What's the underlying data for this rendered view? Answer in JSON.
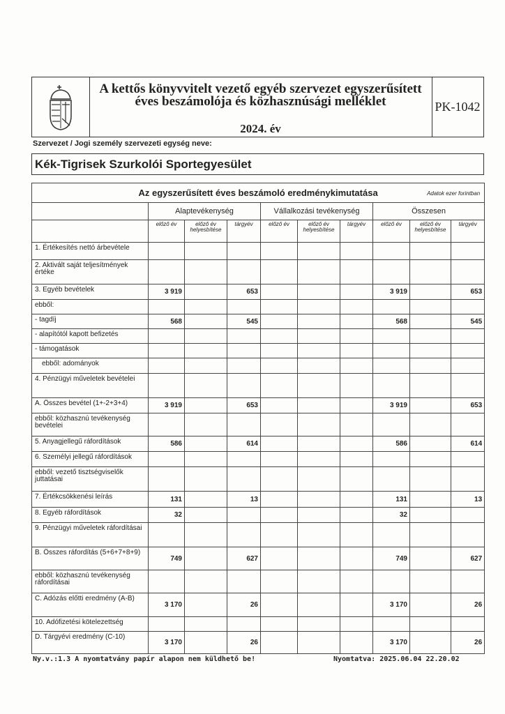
{
  "header": {
    "title_line1": "A kettős könyvvitelt vezető egyéb szervezet egyszerűsített",
    "title_line2": "éves beszámolója és közhasznúsági melléklet",
    "year": "2024. év",
    "form_code": "PK-1042",
    "logo_icon": "hungarian-coat-of-arms-icon"
  },
  "organization": {
    "label": "Szervezet / Jogi személy szervezeti egység neve:",
    "name": "Kék-Tigrisek Szurkolói Sportegyesület"
  },
  "table": {
    "title": "Az egyszerűsített éves beszámoló eredménykimutatása",
    "unit": "Adatok ezer forintban",
    "groups": [
      "Alaptevékenység",
      "Vállalkozási tevékenység",
      "Összesen"
    ],
    "subcolumns": [
      "előző év",
      "előző év helyesbítése",
      "tárgyév"
    ],
    "rows": [
      {
        "label": "1. Értékesítés nettó árbevétele",
        "values": [
          "",
          "",
          "",
          "",
          "",
          "",
          "",
          "",
          ""
        ]
      },
      {
        "label": "2. Aktivált saját teljesítmények értéke",
        "values": [
          "",
          "",
          "",
          "",
          "",
          "",
          "",
          "",
          ""
        ]
      },
      {
        "label": "3. Egyéb bevételek",
        "values": [
          "3 919",
          "",
          "653",
          "",
          "",
          "",
          "3 919",
          "",
          "653"
        ]
      },
      {
        "label": "ebből:",
        "values": [
          "",
          "",
          "",
          "",
          "",
          "",
          "",
          "",
          ""
        ]
      },
      {
        "label": "- tagdíj",
        "values": [
          "568",
          "",
          "545",
          "",
          "",
          "",
          "568",
          "",
          "545"
        ]
      },
      {
        "label": "- alapítótól kapott befizetés",
        "values": [
          "",
          "",
          "",
          "",
          "",
          "",
          "",
          "",
          ""
        ]
      },
      {
        "label": "- támogatások",
        "values": [
          "",
          "",
          "",
          "",
          "",
          "",
          "",
          "",
          ""
        ]
      },
      {
        "label": "ebből: adományok",
        "values": [
          "",
          "",
          "",
          "",
          "",
          "",
          "",
          "",
          ""
        ]
      },
      {
        "label": "4. Pénzügyi műveletek bevételei",
        "values": [
          "",
          "",
          "",
          "",
          "",
          "",
          "",
          "",
          ""
        ]
      },
      {
        "label": "A. Összes bevétel (1+-2+3+4)",
        "values": [
          "3 919",
          "",
          "653",
          "",
          "",
          "",
          "3 919",
          "",
          "653"
        ]
      },
      {
        "label": "ebből: közhasznú tevékenység bevételei",
        "values": [
          "",
          "",
          "",
          "",
          "",
          "",
          "",
          "",
          ""
        ]
      },
      {
        "label": "5. Anyagjellegű ráfordítások",
        "values": [
          "586",
          "",
          "614",
          "",
          "",
          "",
          "586",
          "",
          "614"
        ]
      },
      {
        "label": "6. Személyi jellegű ráfordítások",
        "values": [
          "",
          "",
          "",
          "",
          "",
          "",
          "",
          "",
          ""
        ]
      },
      {
        "label": "ebből: vezető tisztségviselők juttatásai",
        "values": [
          "",
          "",
          "",
          "",
          "",
          "",
          "",
          "",
          ""
        ]
      },
      {
        "label": "7. Értékcsökkenési leírás",
        "values": [
          "131",
          "",
          "13",
          "",
          "",
          "",
          "131",
          "",
          "13"
        ]
      },
      {
        "label": "8. Egyéb ráfordítások",
        "values": [
          "32",
          "",
          "",
          "",
          "",
          "",
          "32",
          "",
          ""
        ]
      },
      {
        "label": "9. Pénzügyi műveletek ráfordításai",
        "values": [
          "",
          "",
          "",
          "",
          "",
          "",
          "",
          "",
          ""
        ]
      },
      {
        "label": "B. Összes ráfordítás (5+6+7+8+9)",
        "values": [
          "749",
          "",
          "627",
          "",
          "",
          "",
          "749",
          "",
          "627"
        ]
      },
      {
        "label": "ebből: közhasznú tevékenység ráfordításai",
        "values": [
          "",
          "",
          "",
          "",
          "",
          "",
          "",
          "",
          ""
        ]
      },
      {
        "label": "C. Adózás előtti eredmény (A-B)",
        "values": [
          "3 170",
          "",
          "26",
          "",
          "",
          "",
          "3 170",
          "",
          "26"
        ]
      },
      {
        "label": "10. Adófizetési kötelezettség",
        "values": [
          "",
          "",
          "",
          "",
          "",
          "",
          "",
          "",
          ""
        ]
      },
      {
        "label": "D. Tárgyévi eredmény (C-10)",
        "values": [
          "3 170",
          "",
          "26",
          "",
          "",
          "",
          "3 170",
          "",
          "26"
        ]
      }
    ]
  },
  "footer": {
    "left": "Ny.v.:1.3 A nyomtatvány papír alapon nem küldhető be!",
    "right": "Nyomtatva: 2025.06.04 22.20.02"
  }
}
